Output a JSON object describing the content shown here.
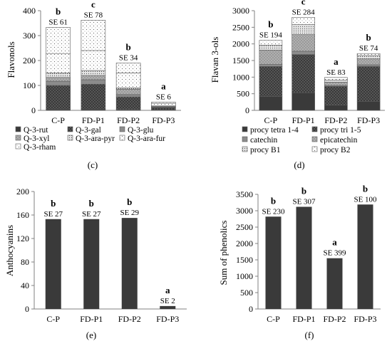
{
  "chart_data": [
    {
      "id": "c",
      "type": "bar",
      "stacked": true,
      "panel_label": "(c)",
      "ylabel": "Flavonols",
      "ylim": [
        0,
        400
      ],
      "yticks": [
        "0",
        "100",
        "200",
        "300",
        "400"
      ],
      "categories": [
        "C-P",
        "FD-P1",
        "FD-P2",
        "FD-P3"
      ],
      "annotations": [
        {
          "letter": "b",
          "se": "SE 61"
        },
        {
          "letter": "c",
          "se": "SE 78"
        },
        {
          "letter": "b",
          "se": "SE 34"
        },
        {
          "letter": "a",
          "se": "SE 6"
        }
      ],
      "series": [
        {
          "name": "Q-3-rut",
          "values": [
            5,
            5,
            4,
            1
          ],
          "pattern": "solid-dark"
        },
        {
          "name": "Q-3-gal",
          "values": [
            95,
            100,
            50,
            10
          ],
          "pattern": "dots-dark"
        },
        {
          "name": "Q-3-glu",
          "values": [
            17,
            18,
            9,
            2
          ],
          "pattern": "solid-gray"
        },
        {
          "name": "Q-3-xyl",
          "values": [
            15,
            17,
            22,
            3
          ],
          "pattern": "dots-gray"
        },
        {
          "name": "Q-3-ara-pyr",
          "values": [
            18,
            20,
            5,
            2
          ],
          "pattern": "fine-dots"
        },
        {
          "name": "Q-3-ara-fur",
          "values": [
            78,
            80,
            60,
            10
          ],
          "pattern": "sparse-dots"
        },
        {
          "name": "Q-3-rham",
          "values": [
            105,
            122,
            40,
            5
          ],
          "pattern": "sparse-dots"
        }
      ]
    },
    {
      "id": "d",
      "type": "bar",
      "stacked": true,
      "panel_label": "(d)",
      "ylabel": "Flavan 3-ols",
      "ylim": [
        0,
        3000
      ],
      "yticks": [
        "0",
        "500",
        "1000",
        "1500",
        "2000",
        "2500",
        "3000"
      ],
      "categories": [
        "C-P",
        "FD-P1",
        "FD-P2",
        "FD-P3"
      ],
      "annotations": [
        {
          "letter": "b",
          "se": "SE 194"
        },
        {
          "letter": "c",
          "se": "SE 284"
        },
        {
          "letter": "a",
          "se": "SE 83"
        },
        {
          "letter": "b",
          "se": "SE 74"
        }
      ],
      "series": [
        {
          "name": "procy tetra 1-4",
          "values": [
            420,
            530,
            160,
            270
          ],
          "pattern": "solid-dark"
        },
        {
          "name": "procy tri 1-5",
          "values": [
            900,
            1150,
            560,
            1050
          ],
          "pattern": "dots-dark"
        },
        {
          "name": "catechin",
          "values": [
            60,
            100,
            30,
            50
          ],
          "pattern": "solid-gray"
        },
        {
          "name": "epicatechin",
          "values": [
            430,
            500,
            100,
            180
          ],
          "pattern": "dots-gray"
        },
        {
          "name": "procy B1",
          "values": [
            150,
            300,
            60,
            100
          ],
          "pattern": "fine-dots"
        },
        {
          "name": "procy B2",
          "values": [
            150,
            220,
            80,
            60
          ],
          "pattern": "sparse-dots"
        }
      ]
    },
    {
      "id": "e",
      "type": "bar",
      "panel_label": "(e)",
      "ylabel": "Anthocyanins",
      "ylim": [
        0,
        200
      ],
      "yticks": [
        "0",
        "40",
        "80",
        "120",
        "160",
        "200"
      ],
      "categories": [
        "C-P",
        "FD-P1",
        "FD-P2",
        "FD-P3"
      ],
      "values": [
        153,
        153,
        155,
        5
      ],
      "annotations": [
        {
          "letter": "b",
          "se": "SE 27"
        },
        {
          "letter": "b",
          "se": "SE 27"
        },
        {
          "letter": "b",
          "se": "SE 29"
        },
        {
          "letter": "a",
          "se": "SE 2"
        }
      ]
    },
    {
      "id": "f",
      "type": "bar",
      "panel_label": "(f)",
      "ylabel": "Sum of phenolics",
      "ylim": [
        0,
        3500
      ],
      "yticks": [
        "0",
        "500",
        "1000",
        "1500",
        "2000",
        "2500",
        "3000",
        "3500"
      ],
      "categories": [
        "C-P",
        "FD-P1",
        "FD-P2",
        "FD-P3"
      ],
      "values": [
        2820,
        3120,
        1550,
        3190
      ],
      "annotations": [
        {
          "letter": "b",
          "se": "SE 230"
        },
        {
          "letter": "b",
          "se": "SE 307"
        },
        {
          "letter": "a",
          "se": "SE 399"
        },
        {
          "letter": "b",
          "se": "SE 100"
        }
      ]
    }
  ],
  "colors": {
    "axis": "#808080",
    "bar_dark": "#3a3a3a",
    "bar_gray": "#8c8c8c",
    "bar_light": "#d9d9d9"
  }
}
